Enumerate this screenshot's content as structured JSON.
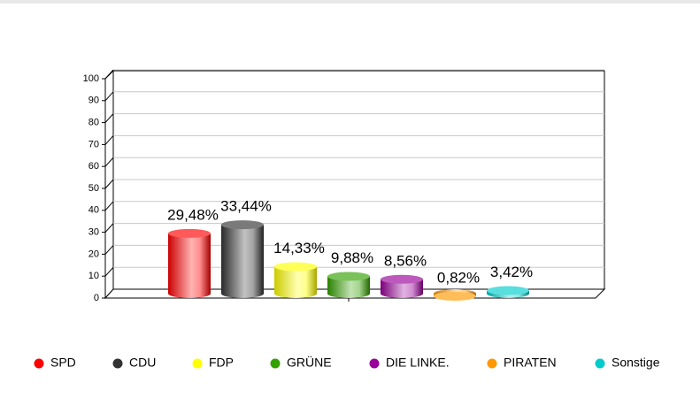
{
  "chart_data": {
    "type": "bar",
    "categories": [
      "SPD",
      "CDU",
      "FDP",
      "GRÜNE",
      "DIE LINKE.",
      "PIRATEN",
      "Sonstige"
    ],
    "values": [
      29.48,
      33.44,
      14.33,
      9.88,
      8.56,
      0.82,
      3.42
    ],
    "value_labels": [
      "29,48%",
      "33,44%",
      "14,33%",
      "9,88%",
      "8,56%",
      "0,82%",
      "3,42%"
    ],
    "colors": [
      "#ff0000",
      "#333333",
      "#ffff00",
      "#33a000",
      "#990099",
      "#ff9900",
      "#00cccc"
    ],
    "ylim": [
      0,
      100
    ],
    "yticks": [
      0,
      10,
      20,
      30,
      40,
      50,
      60,
      70,
      80,
      90,
      100
    ],
    "grid": true
  }
}
